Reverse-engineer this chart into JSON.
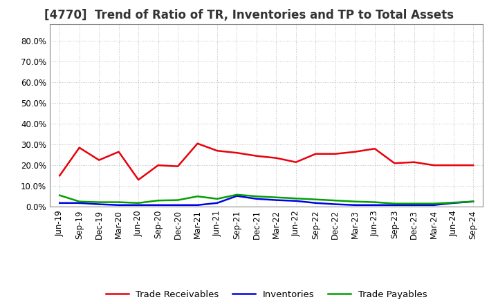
{
  "title": "[4770]  Trend of Ratio of TR, Inventories and TP to Total Assets",
  "labels": [
    "Jun-19",
    "Sep-19",
    "Dec-19",
    "Mar-20",
    "Jun-20",
    "Sep-20",
    "Dec-20",
    "Mar-21",
    "Jun-21",
    "Sep-21",
    "Dec-21",
    "Mar-22",
    "Jun-22",
    "Sep-22",
    "Dec-22",
    "Mar-23",
    "Jun-23",
    "Sep-23",
    "Dec-23",
    "Mar-24",
    "Jun-24",
    "Sep-24"
  ],
  "trade_receivables": [
    0.15,
    0.285,
    0.225,
    0.265,
    0.13,
    0.2,
    0.195,
    0.305,
    0.27,
    0.26,
    0.245,
    0.235,
    0.215,
    0.255,
    0.255,
    0.265,
    0.28,
    0.21,
    0.215,
    0.2,
    0.2,
    0.2
  ],
  "inventories": [
    0.018,
    0.018,
    0.012,
    0.008,
    0.008,
    0.008,
    0.008,
    0.008,
    0.018,
    0.052,
    0.038,
    0.032,
    0.028,
    0.018,
    0.012,
    0.008,
    0.008,
    0.008,
    0.008,
    0.008,
    0.018,
    0.025
  ],
  "trade_payables": [
    0.055,
    0.025,
    0.022,
    0.022,
    0.018,
    0.03,
    0.032,
    0.05,
    0.038,
    0.058,
    0.05,
    0.045,
    0.04,
    0.035,
    0.03,
    0.025,
    0.022,
    0.015,
    0.015,
    0.015,
    0.02,
    0.025
  ],
  "tr_color": "#e8000a",
  "inv_color": "#0000e8",
  "tp_color": "#00a000",
  "background_color": "#ffffff",
  "plot_bg_color": "#f5f5f5",
  "grid_color": "#aaaaaa",
  "ylim": [
    0.0,
    0.88
  ],
  "yticks": [
    0.0,
    0.1,
    0.2,
    0.3,
    0.4,
    0.5,
    0.6,
    0.7,
    0.8
  ],
  "legend_labels": [
    "Trade Receivables",
    "Inventories",
    "Trade Payables"
  ],
  "title_fontsize": 12,
  "tick_fontsize": 8.5,
  "legend_fontsize": 9.5,
  "line_width": 1.8
}
